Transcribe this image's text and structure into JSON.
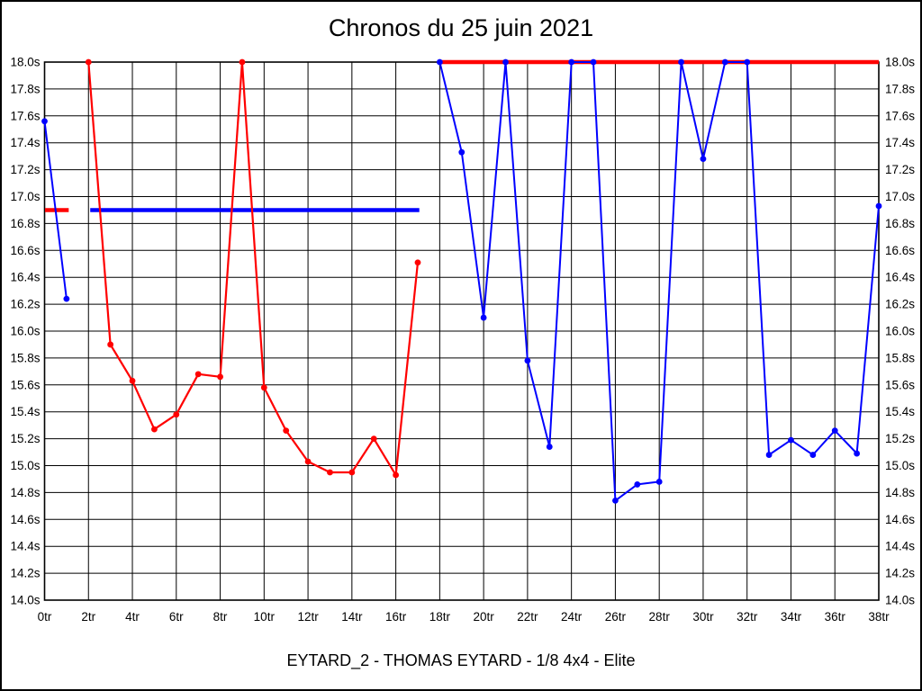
{
  "title": "Chronos du 25 juin 2021",
  "footer": "EYTARD_2 - THOMAS EYTARD - 1/8 4x4 - Elite",
  "colors": {
    "red": "#ff0000",
    "blue": "#0000ff",
    "grid": "#000000",
    "background": "#ffffff"
  },
  "chart_data": {
    "type": "line",
    "title": "Chronos du 25 juin 2021",
    "subtitle": "EYTARD_2 - THOMAS EYTARD - 1/8 4x4 - Elite",
    "xlabel": "",
    "ylabel": "",
    "x_unit": "tr",
    "y_unit": "s",
    "xlim": [
      0,
      38
    ],
    "ylim": [
      14.0,
      18.0
    ],
    "x_tick_step": 2,
    "y_tick_step": 0.2,
    "grid": true,
    "legend_position": "none",
    "y_axis_labels_on_both_sides": true,
    "x_tick_labels": [
      "0tr",
      "2tr",
      "4tr",
      "6tr",
      "8tr",
      "10tr",
      "12tr",
      "14tr",
      "16tr",
      "18tr",
      "20tr",
      "22tr",
      "24tr",
      "26tr",
      "28tr",
      "30tr",
      "32tr",
      "34tr",
      "36tr",
      "38tr"
    ],
    "y_tick_labels": [
      "14.0s",
      "14.2s",
      "14.4s",
      "14.6s",
      "14.8s",
      "15.0s",
      "15.2s",
      "15.4s",
      "15.6s",
      "15.8s",
      "16.0s",
      "16.2s",
      "16.4s",
      "16.6s",
      "16.8s",
      "17.0s",
      "17.2s",
      "17.4s",
      "17.6s",
      "17.8s",
      "18.0s"
    ],
    "series": [
      {
        "name": "red-run-laps",
        "color": "#ff0000",
        "marker": "circle",
        "line_width": 2.2,
        "points": [
          [
            2,
            18.0
          ],
          [
            3,
            15.9
          ],
          [
            4,
            15.63
          ],
          [
            5,
            15.27
          ],
          [
            6,
            15.38
          ],
          [
            7,
            15.68
          ],
          [
            8,
            15.66
          ],
          [
            9,
            18.0
          ],
          [
            10,
            15.58
          ],
          [
            11,
            15.26
          ],
          [
            12,
            15.03
          ],
          [
            13,
            14.95
          ],
          [
            14,
            14.95
          ],
          [
            15,
            15.2
          ],
          [
            16,
            14.93
          ],
          [
            17,
            16.51
          ]
        ]
      },
      {
        "name": "blue-run-start-laps",
        "color": "#0000ff",
        "marker": "circle",
        "line_width": 2,
        "points": [
          [
            0,
            17.56
          ],
          [
            1,
            16.24
          ]
        ]
      },
      {
        "name": "blue-run-main-laps",
        "color": "#0000ff",
        "marker": "circle",
        "line_width": 2,
        "points": [
          [
            18,
            18.0
          ],
          [
            19,
            17.33
          ],
          [
            20,
            16.1
          ],
          [
            21,
            18.0
          ],
          [
            22,
            15.78
          ],
          [
            23,
            15.14
          ],
          [
            24,
            18.0
          ],
          [
            25,
            18.0
          ],
          [
            26,
            14.74
          ],
          [
            27,
            14.86
          ],
          [
            28,
            14.88
          ],
          [
            29,
            18.0
          ],
          [
            30,
            17.28
          ],
          [
            31,
            18.0
          ],
          [
            32,
            18.0
          ],
          [
            33,
            15.08
          ],
          [
            34,
            15.19
          ],
          [
            35,
            15.08
          ],
          [
            36,
            15.26
          ],
          [
            37,
            15.09
          ],
          [
            38,
            16.93
          ]
        ]
      }
    ],
    "reference_lines": [
      {
        "name": "red-cap-line-18s",
        "color": "#ff0000",
        "y": 18.0,
        "x_start": 18.0,
        "x_end": 38.0,
        "line_width": 4.5
      },
      {
        "name": "red-mean-line-16.9s",
        "color": "#ff0000",
        "y": 16.9,
        "x_start": 0.02,
        "x_end": 1.1,
        "line_width": 4.5
      },
      {
        "name": "blue-mean-line-16.9s",
        "color": "#0000ff",
        "y": 16.9,
        "x_start": 2.08,
        "x_end": 17.07,
        "line_width": 4.5
      }
    ]
  }
}
